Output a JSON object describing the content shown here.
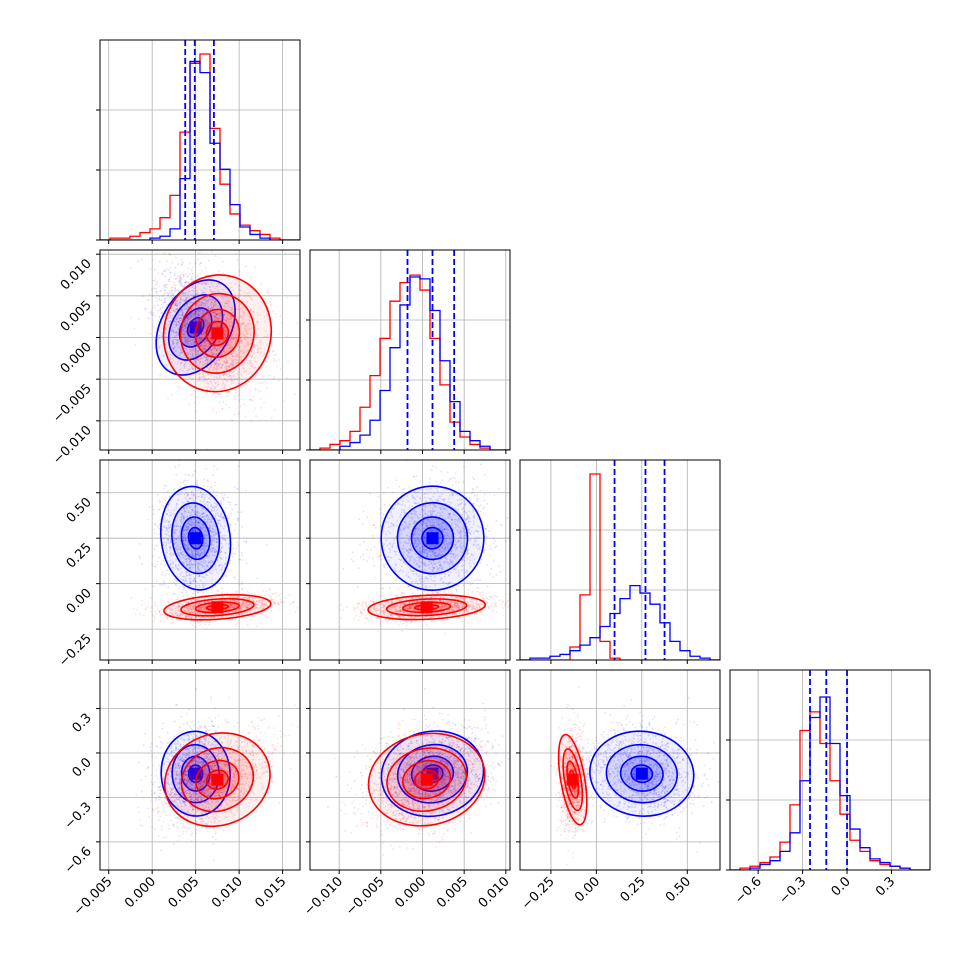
{
  "colors": {
    "posterior_a": "#0000ff",
    "posterior_b": "#ff0000"
  },
  "chart_data": {
    "type": "corner",
    "title": "",
    "n_params": 4,
    "grid": true,
    "axes_labels": [
      "",
      "",
      "",
      ""
    ],
    "ranges": [
      [
        -0.006,
        0.017
      ],
      [
        -0.0135,
        0.0105
      ],
      [
        -0.42,
        0.68
      ],
      [
        -0.79,
        0.56
      ]
    ],
    "ticks": [
      {
        "values": [
          -0.005,
          0.0,
          0.005,
          0.01,
          0.015
        ],
        "labels": [
          "−0.005",
          "0.000",
          "0.005",
          "0.010",
          "0.015"
        ]
      },
      {
        "values": [
          -0.01,
          -0.005,
          0.0,
          0.005,
          0.01
        ],
        "labels": [
          "−0.010",
          "−0.005",
          "0.000",
          "0.005",
          "0.010"
        ]
      },
      {
        "values": [
          -0.25,
          0.0,
          0.25,
          0.5
        ],
        "labels": [
          "−0.25",
          "0.00",
          "0.25",
          "0.50"
        ]
      },
      {
        "values": [
          -0.6,
          -0.3,
          0.0,
          0.3
        ],
        "labels": [
          "−0.6",
          "−0.3",
          "0.0",
          "0.3"
        ]
      }
    ],
    "series": [
      {
        "color": "#0000ff",
        "quantiles": [
          [
            0.0038,
            0.0049,
            0.0071
          ],
          [
            -0.0018,
            0.0012,
            0.0038
          ],
          [
            0.1,
            0.27,
            0.375
          ],
          [
            -0.25,
            -0.14,
            0.0
          ]
        ],
        "means": [
          0.005,
          0.0012,
          0.25,
          -0.14
        ],
        "sds": [
          0.0018,
          0.0028,
          0.13,
          0.13
        ],
        "marginals": [
          [
            0,
            0,
            0,
            0,
            0,
            0.01,
            0.02,
            0.06,
            0.33,
            0.96,
            0.9,
            0.52,
            0.38,
            0.19,
            0.07,
            0.03,
            0.01,
            0,
            0,
            0
          ],
          [
            0,
            0,
            0,
            0.02,
            0.04,
            0.08,
            0.16,
            0.32,
            0.55,
            0.78,
            0.93,
            0.92,
            0.75,
            0.48,
            0.26,
            0.1,
            0.05,
            0.02,
            0,
            0
          ],
          [
            0,
            0.01,
            0.01,
            0.02,
            0.03,
            0.05,
            0.08,
            0.12,
            0.18,
            0.25,
            0.33,
            0.4,
            0.36,
            0.3,
            0.2,
            0.1,
            0.05,
            0.02,
            0.01,
            0
          ],
          [
            0,
            0,
            0.01,
            0.03,
            0.05,
            0.1,
            0.2,
            0.48,
            0.82,
            0.93,
            0.68,
            0.4,
            0.22,
            0.12,
            0.06,
            0.04,
            0.02,
            0.01,
            0,
            0
          ]
        ]
      },
      {
        "color": "#ff0000",
        "quantiles": null,
        "means": [
          0.0075,
          0.0005,
          -0.13,
          -0.18
        ],
        "sds": [
          0.0028,
          0.0032,
          0.03,
          0.14
        ],
        "marginals": [
          [
            0,
            0.01,
            0.01,
            0.02,
            0.04,
            0.06,
            0.12,
            0.24,
            0.58,
            0.95,
            1.0,
            0.6,
            0.3,
            0.14,
            0.08,
            0.05,
            0.03,
            0.01,
            0,
            0
          ],
          [
            0,
            0.01,
            0.03,
            0.05,
            0.1,
            0.23,
            0.4,
            0.6,
            0.8,
            0.9,
            0.94,
            0.86,
            0.6,
            0.35,
            0.15,
            0.07,
            0.03,
            0.01,
            0,
            0
          ],
          [
            0,
            0,
            0,
            0,
            0,
            0.07,
            0.35,
            1.0,
            0.1,
            0.01,
            0,
            0,
            0,
            0,
            0,
            0,
            0,
            0,
            0,
            0
          ],
          [
            0,
            0.01,
            0.02,
            0.04,
            0.07,
            0.15,
            0.35,
            0.75,
            0.85,
            0.68,
            0.48,
            0.3,
            0.16,
            0.1,
            0.05,
            0.03,
            0.02,
            0.01,
            0,
            0
          ]
        ]
      }
    ]
  }
}
